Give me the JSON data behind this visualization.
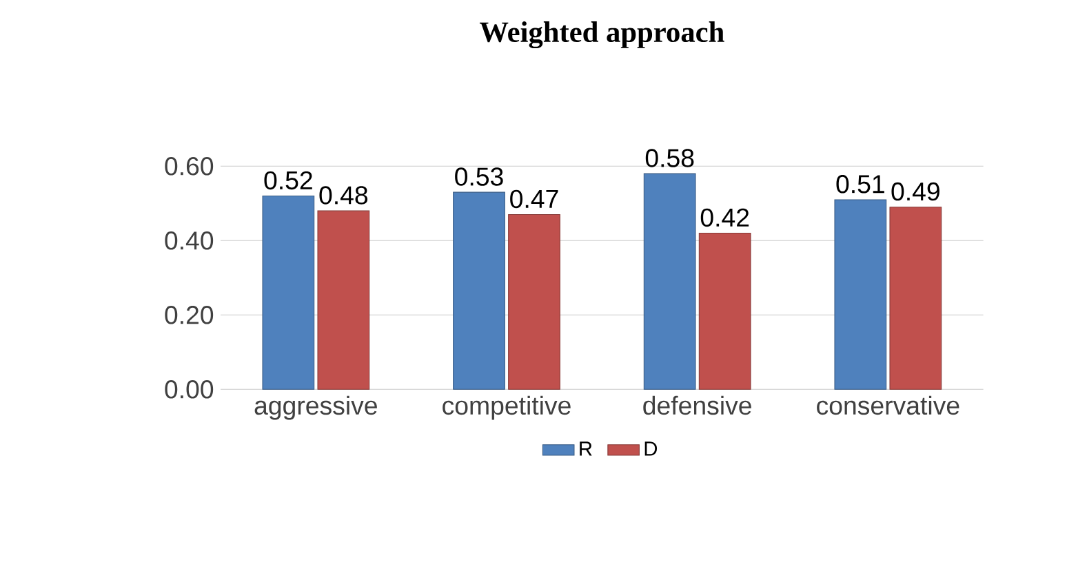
{
  "chart_data": {
    "type": "bar",
    "title": "Weighted approach",
    "categories": [
      "aggressive",
      "competitive",
      "defensive",
      "conservative"
    ],
    "series": [
      {
        "name": "R",
        "color": "#4f81bd",
        "values": [
          0.52,
          0.53,
          0.58,
          0.51
        ]
      },
      {
        "name": "D",
        "color": "#c0504d",
        "values": [
          0.48,
          0.47,
          0.42,
          0.49
        ]
      }
    ],
    "ylim": [
      0,
      0.6
    ],
    "yticks": [
      {
        "value": 0,
        "label": "0.00"
      },
      {
        "value": 0.2,
        "label": "0.20"
      },
      {
        "value": 0.4,
        "label": "0.40"
      },
      {
        "value": 0.6,
        "label": "0.60"
      }
    ],
    "grid": "y",
    "legend": "bottom",
    "data_labels": true
  }
}
